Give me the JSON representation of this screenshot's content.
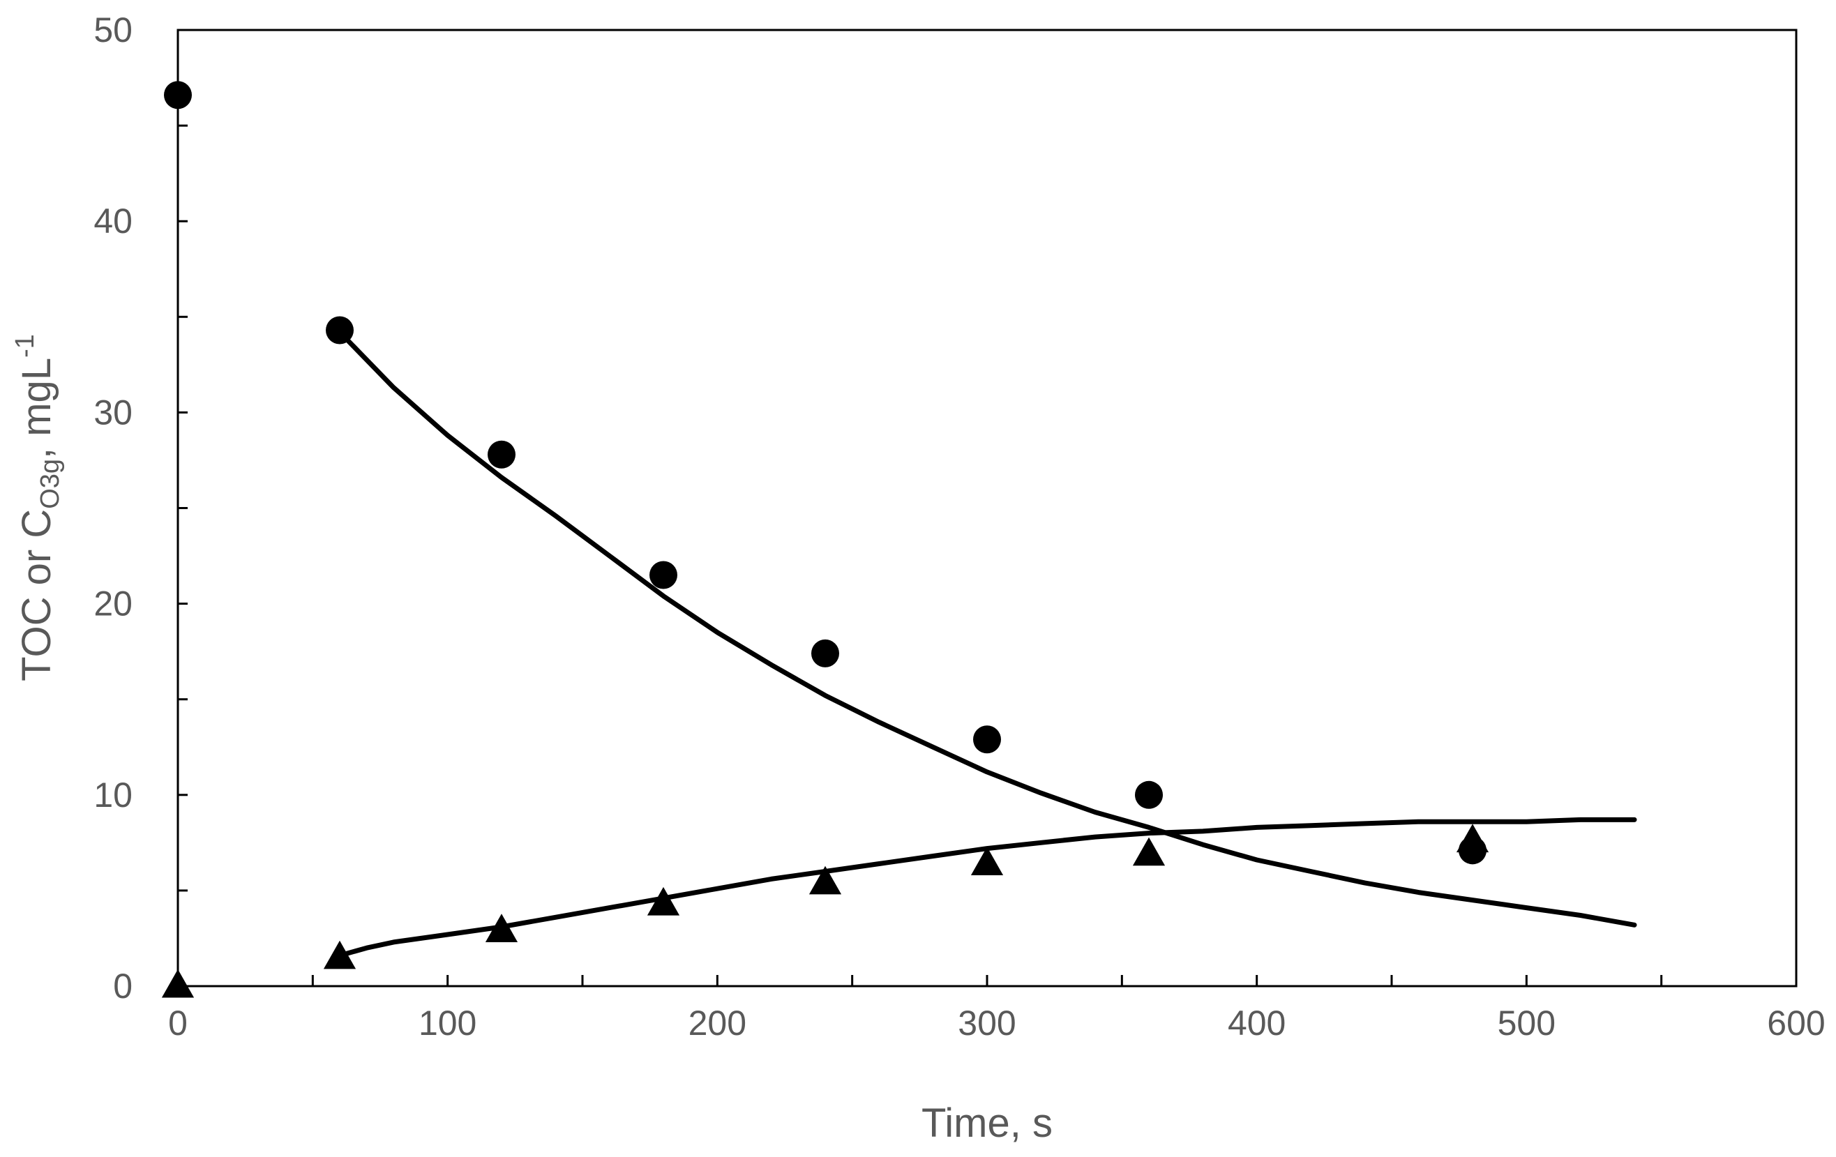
{
  "chart_data": {
    "type": "scatter",
    "title": "",
    "xlabel": "Time, s",
    "ylabel": {
      "main": "TOC or C",
      "subscript": "O3g",
      "suffix": ", mgL",
      "superscript": "-1"
    },
    "xlim": [
      0,
      600
    ],
    "ylim": [
      0,
      50
    ],
    "x_ticks": [
      0,
      100,
      200,
      300,
      400,
      500,
      600
    ],
    "y_ticks": [
      0,
      10,
      20,
      30,
      40,
      50
    ],
    "x_minor_step": 50,
    "y_minor_step": 5,
    "grid": false,
    "legend": "none",
    "series": [
      {
        "name": "TOC",
        "marker": "circle",
        "x": [
          0,
          60,
          120,
          180,
          240,
          300,
          360,
          480
        ],
        "y": [
          46.6,
          34.3,
          27.8,
          21.5,
          17.4,
          12.9,
          10.0,
          7.1
        ]
      },
      {
        "name": "C_O3g",
        "marker": "triangle",
        "x": [
          0,
          60,
          120,
          180,
          240,
          300,
          360,
          480
        ],
        "y": [
          0.0,
          1.5,
          2.9,
          4.3,
          5.4,
          6.4,
          6.9,
          7.6
        ]
      }
    ],
    "fits": [
      {
        "name": "TOC model",
        "x": [
          60,
          80,
          100,
          120,
          140,
          160,
          180,
          200,
          220,
          240,
          260,
          280,
          300,
          320,
          340,
          360,
          380,
          400,
          420,
          440,
          460,
          480,
          500,
          520,
          540
        ],
        "y": [
          34.2,
          31.3,
          28.8,
          26.6,
          24.6,
          22.5,
          20.4,
          18.5,
          16.8,
          15.2,
          13.8,
          12.5,
          11.2,
          10.1,
          9.1,
          8.3,
          7.4,
          6.6,
          6.0,
          5.4,
          4.9,
          4.5,
          4.1,
          3.7,
          3.2
        ]
      },
      {
        "name": "C_O3g model",
        "x": [
          60,
          70,
          80,
          100,
          120,
          140,
          160,
          180,
          200,
          220,
          240,
          260,
          280,
          300,
          320,
          340,
          360,
          380,
          400,
          420,
          440,
          460,
          480,
          500,
          520,
          540
        ],
        "y": [
          1.6,
          2.0,
          2.3,
          2.7,
          3.1,
          3.6,
          4.1,
          4.6,
          5.1,
          5.6,
          6.0,
          6.4,
          6.8,
          7.2,
          7.5,
          7.8,
          8.0,
          8.1,
          8.3,
          8.4,
          8.5,
          8.6,
          8.6,
          8.6,
          8.7,
          8.7
        ]
      }
    ]
  }
}
